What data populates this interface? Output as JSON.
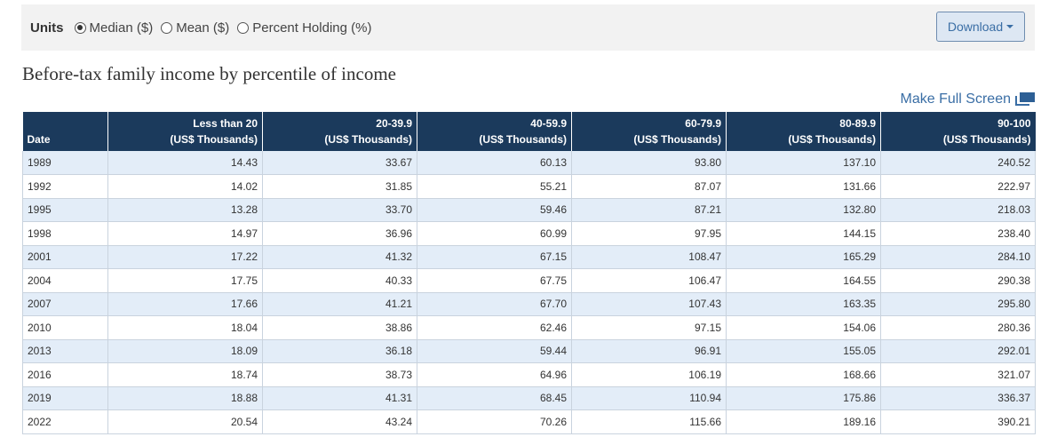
{
  "units": {
    "label": "Units",
    "options": [
      {
        "label": "Median ($)",
        "selected": true
      },
      {
        "label": "Mean ($)",
        "selected": false
      },
      {
        "label": "Percent Holding (%)",
        "selected": false
      }
    ]
  },
  "download": {
    "label": "Download"
  },
  "title": "Before-tax family income by percentile of income",
  "fullscreen": {
    "label": "Make Full Screen"
  },
  "colors": {
    "header_bg": "#1b3a5c",
    "row_stripe": "#e3edf8",
    "link": "#3a6ea5"
  },
  "table": {
    "date_header": "Date",
    "columns": [
      {
        "l1": "Less than 20",
        "l2": "(US$ Thousands)"
      },
      {
        "l1": "20-39.9",
        "l2": "(US$ Thousands)"
      },
      {
        "l1": "40-59.9",
        "l2": "(US$ Thousands)"
      },
      {
        "l1": "60-79.9",
        "l2": "(US$ Thousands)"
      },
      {
        "l1": "80-89.9",
        "l2": "(US$ Thousands)"
      },
      {
        "l1": "90-100",
        "l2": "(US$ Thousands)"
      }
    ],
    "rows": [
      [
        "1989",
        "14.43",
        "33.67",
        "60.13",
        "93.80",
        "137.10",
        "240.52"
      ],
      [
        "1992",
        "14.02",
        "31.85",
        "55.21",
        "87.07",
        "131.66",
        "222.97"
      ],
      [
        "1995",
        "13.28",
        "33.70",
        "59.46",
        "87.21",
        "132.80",
        "218.03"
      ],
      [
        "1998",
        "14.97",
        "36.96",
        "60.99",
        "97.95",
        "144.15",
        "238.40"
      ],
      [
        "2001",
        "17.22",
        "41.32",
        "67.15",
        "108.47",
        "165.29",
        "284.10"
      ],
      [
        "2004",
        "17.75",
        "40.33",
        "67.75",
        "106.47",
        "164.55",
        "290.38"
      ],
      [
        "2007",
        "17.66",
        "41.21",
        "67.70",
        "107.43",
        "163.35",
        "295.80"
      ],
      [
        "2010",
        "18.04",
        "38.86",
        "62.46",
        "97.15",
        "154.06",
        "280.36"
      ],
      [
        "2013",
        "18.09",
        "36.18",
        "59.44",
        "96.91",
        "155.05",
        "292.01"
      ],
      [
        "2016",
        "18.74",
        "38.73",
        "64.96",
        "106.19",
        "168.66",
        "321.07"
      ],
      [
        "2019",
        "18.88",
        "41.31",
        "68.45",
        "110.94",
        "175.86",
        "336.37"
      ],
      [
        "2022",
        "20.54",
        "43.24",
        "70.26",
        "115.66",
        "189.16",
        "390.21"
      ]
    ]
  }
}
